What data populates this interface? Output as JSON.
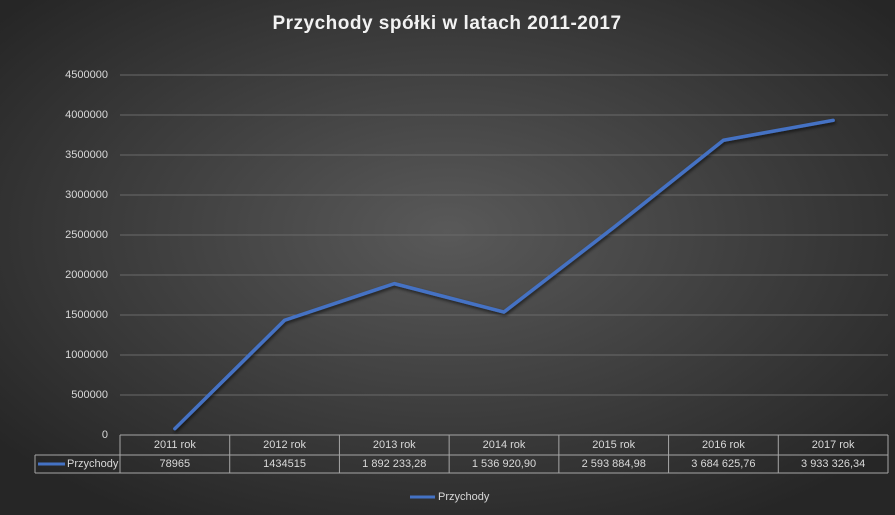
{
  "chart_data": {
    "type": "line",
    "title": "Przychody  spółki  w latach  2011-2017",
    "categories": [
      "2011 rok",
      "2012 rok",
      "2013 rok",
      "2014 rok",
      "2015 rok",
      "2016 rok",
      "2017 rok"
    ],
    "series": [
      {
        "name": "Przychody",
        "color": "#4472c4",
        "values": [
          78965,
          1434515,
          1892233.28,
          1536920.9,
          2593884.98,
          3684625.76,
          3933326.34
        ],
        "value_labels": [
          "78965",
          "1434515",
          "1 892 233,28",
          "1 536 920,90",
          "2 593 884,98",
          "3 684 625,76",
          "3 933 326,34"
        ]
      }
    ],
    "ylim": [
      0,
      4500000
    ],
    "yticks": [
      0,
      500000,
      1000000,
      1500000,
      2000000,
      2500000,
      3000000,
      3500000,
      4000000,
      4500000
    ],
    "grid": true,
    "legend": "bottom"
  }
}
